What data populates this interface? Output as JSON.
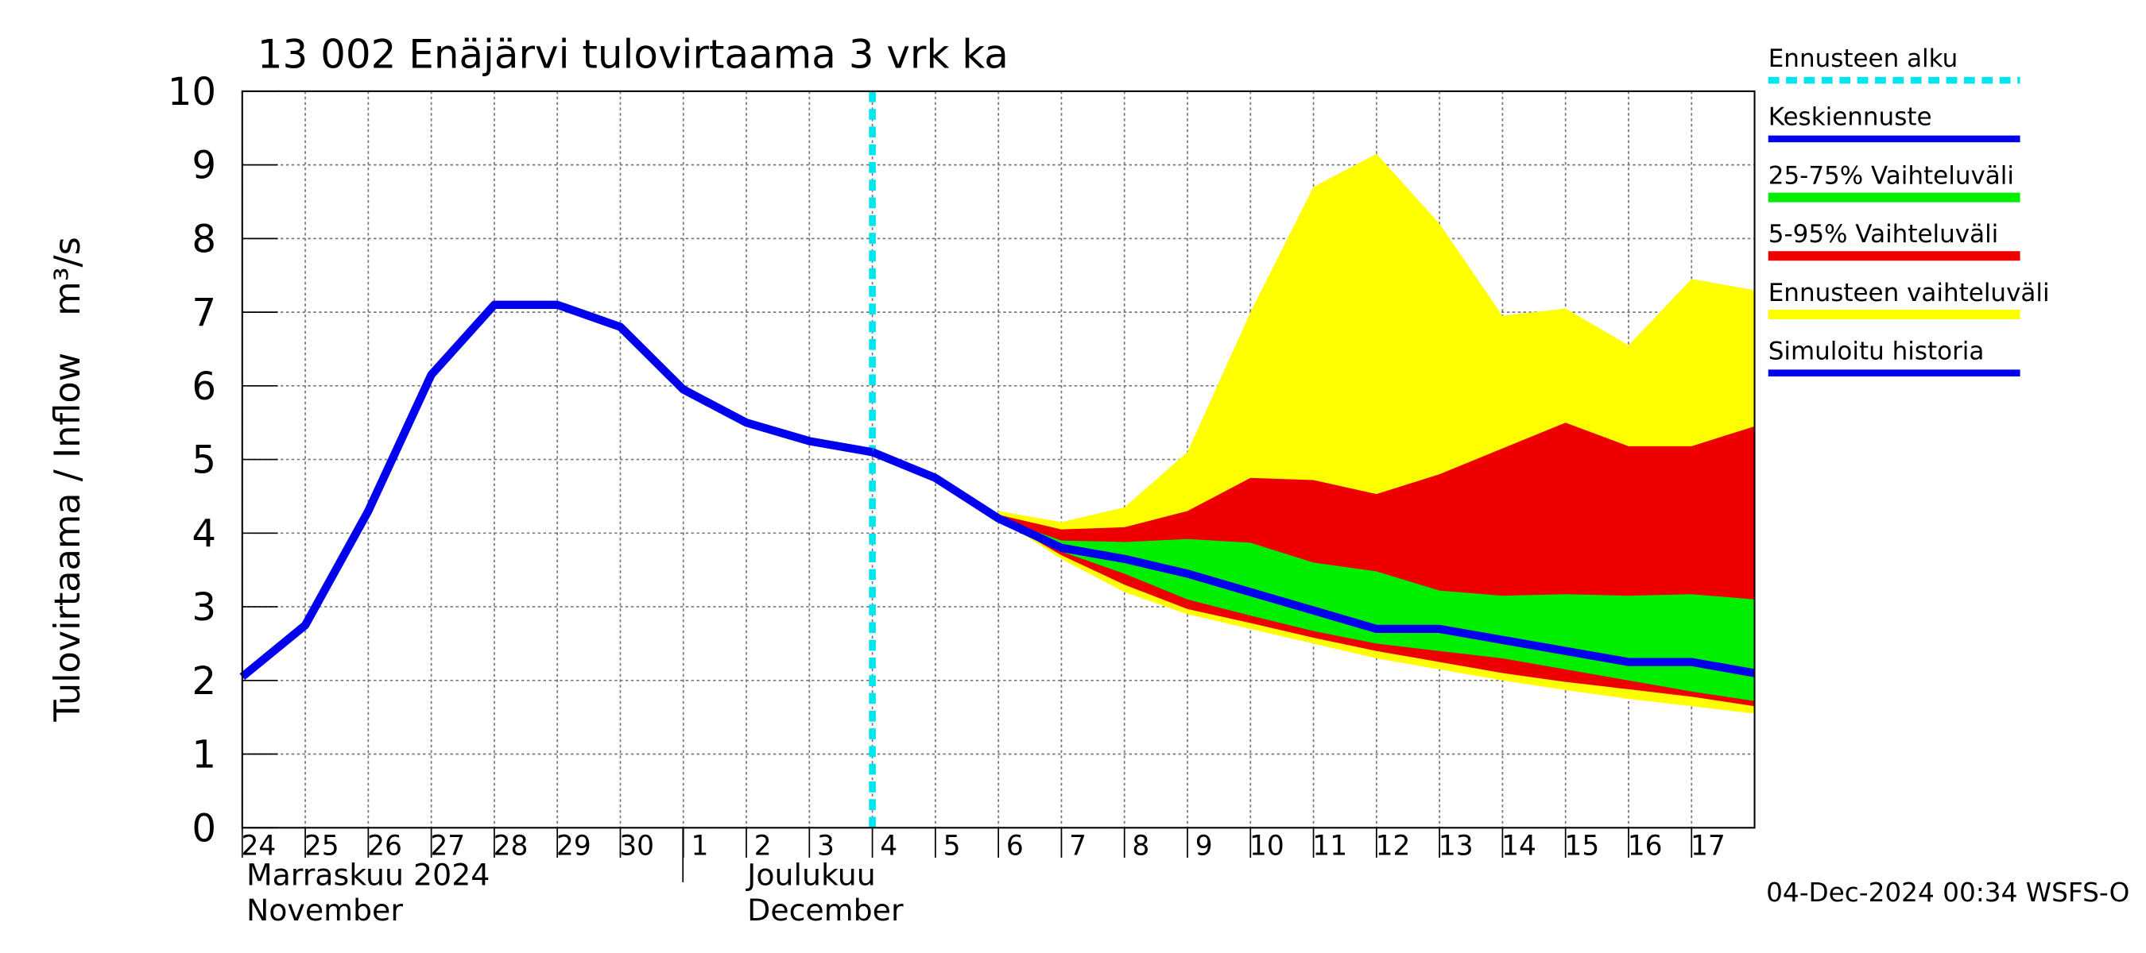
{
  "chart_data": {
    "type": "band_forecast",
    "title": "13 002 Enäjärvi tulovirtaama 3 vrk ka",
    "ylabel": "Tulovirtaama / Inflow",
    "yunit": "m³/s",
    "month_labels": [
      "Marraskuu 2024",
      "November",
      "Joulukuu",
      "December"
    ],
    "timestamp": "04-Dec-2024 00:34 WSFS-O",
    "x": [
      "2024-11-24",
      "2024-11-25",
      "2024-11-26",
      "2024-11-27",
      "2024-11-28",
      "2024-11-29",
      "2024-11-30",
      "2024-12-01",
      "2024-12-02",
      "2024-12-03",
      "2024-12-04",
      "2024-12-05",
      "2024-12-06",
      "2024-12-07",
      "2024-12-08",
      "2024-12-09",
      "2024-12-10",
      "2024-12-11",
      "2024-12-12",
      "2024-12-13",
      "2024-12-14",
      "2024-12-15",
      "2024-12-16",
      "2024-12-17",
      "2024-12-18"
    ],
    "xlim": [
      "2024-11-24",
      "2024-12-18"
    ],
    "xticks": [
      {
        "value": "2024-11-24",
        "label": "24"
      },
      {
        "value": "2024-11-25",
        "label": "25"
      },
      {
        "value": "2024-11-26",
        "label": "26"
      },
      {
        "value": "2024-11-27",
        "label": "27"
      },
      {
        "value": "2024-11-28",
        "label": "28"
      },
      {
        "value": "2024-11-29",
        "label": "29"
      },
      {
        "value": "2024-11-30",
        "label": "30"
      },
      {
        "value": "2024-12-01",
        "label": "1"
      },
      {
        "value": "2024-12-02",
        "label": "2"
      },
      {
        "value": "2024-12-03",
        "label": "3"
      },
      {
        "value": "2024-12-04",
        "label": "4"
      },
      {
        "value": "2024-12-05",
        "label": "5"
      },
      {
        "value": "2024-12-06",
        "label": "6"
      },
      {
        "value": "2024-12-07",
        "label": "7"
      },
      {
        "value": "2024-12-08",
        "label": "8"
      },
      {
        "value": "2024-12-09",
        "label": "9"
      },
      {
        "value": "2024-12-10",
        "label": "10"
      },
      {
        "value": "2024-12-11",
        "label": "11"
      },
      {
        "value": "2024-12-12",
        "label": "12"
      },
      {
        "value": "2024-12-13",
        "label": "13"
      },
      {
        "value": "2024-12-14",
        "label": "14"
      },
      {
        "value": "2024-12-15",
        "label": "15"
      },
      {
        "value": "2024-12-16",
        "label": "16"
      },
      {
        "value": "2024-12-17",
        "label": "17"
      }
    ],
    "ylim": [
      0,
      10
    ],
    "yticks": [
      0,
      1,
      2,
      3,
      4,
      5,
      6,
      7,
      8,
      9,
      10
    ],
    "grid": true,
    "series": [
      {
        "name": "Ennusteen alku",
        "color": "#00e5ee",
        "x": "2024-12-04"
      },
      {
        "name": "Keskiennuste",
        "color": "#0000ee",
        "values": [
          null,
          null,
          null,
          null,
          null,
          null,
          null,
          null,
          null,
          null,
          5.1,
          4.75,
          4.2,
          3.8,
          3.65,
          3.45,
          3.2,
          2.95,
          2.7,
          2.7,
          2.55,
          2.4,
          2.25,
          2.25,
          2.1
        ]
      },
      {
        "name": "25-75% Vaihteluväli",
        "color": "#00ee00",
        "lower": [
          null,
          null,
          null,
          null,
          null,
          null,
          null,
          null,
          null,
          null,
          null,
          null,
          4.2,
          3.75,
          3.45,
          3.1,
          2.88,
          2.67,
          2.5,
          2.4,
          2.3,
          2.15,
          2.0,
          1.85,
          1.72
        ],
        "upper": [
          null,
          null,
          null,
          null,
          null,
          null,
          null,
          null,
          null,
          null,
          null,
          null,
          4.2,
          3.9,
          3.88,
          3.92,
          3.87,
          3.6,
          3.48,
          3.22,
          3.15,
          3.17,
          3.15,
          3.17,
          3.1
        ]
      },
      {
        "name": "5-95% Vaihteluväli",
        "color": "#ee0000",
        "lower": [
          null,
          null,
          null,
          null,
          null,
          null,
          null,
          null,
          null,
          null,
          null,
          null,
          4.2,
          3.7,
          3.3,
          2.97,
          2.78,
          2.58,
          2.4,
          2.25,
          2.1,
          1.98,
          1.88,
          1.78,
          1.65
        ],
        "upper": [
          null,
          null,
          null,
          null,
          null,
          null,
          null,
          null,
          null,
          null,
          null,
          null,
          4.25,
          4.05,
          4.08,
          4.3,
          4.75,
          4.72,
          4.53,
          4.8,
          5.15,
          5.5,
          5.18,
          5.18,
          5.45
        ]
      },
      {
        "name": "Ennusteen vaihteluväli",
        "color": "#ffff00",
        "lower": [
          null,
          null,
          null,
          null,
          null,
          null,
          null,
          null,
          null,
          null,
          null,
          null,
          4.2,
          3.65,
          3.2,
          2.9,
          2.7,
          2.5,
          2.3,
          2.15,
          2.0,
          1.87,
          1.75,
          1.65,
          1.55
        ],
        "upper": [
          null,
          null,
          null,
          null,
          null,
          null,
          null,
          null,
          null,
          null,
          null,
          null,
          4.3,
          4.15,
          4.35,
          5.1,
          7.0,
          8.7,
          9.15,
          8.2,
          6.95,
          7.05,
          6.55,
          7.45,
          7.3
        ]
      },
      {
        "name": "Simuloitu historia",
        "color": "#0000ee",
        "values": [
          2.05,
          2.75,
          4.3,
          6.15,
          7.1,
          7.1,
          6.8,
          5.95,
          5.5,
          5.25,
          5.1,
          null,
          null,
          null,
          null,
          null,
          null,
          null,
          null,
          null,
          null,
          null,
          null,
          null,
          null
        ]
      }
    ]
  }
}
